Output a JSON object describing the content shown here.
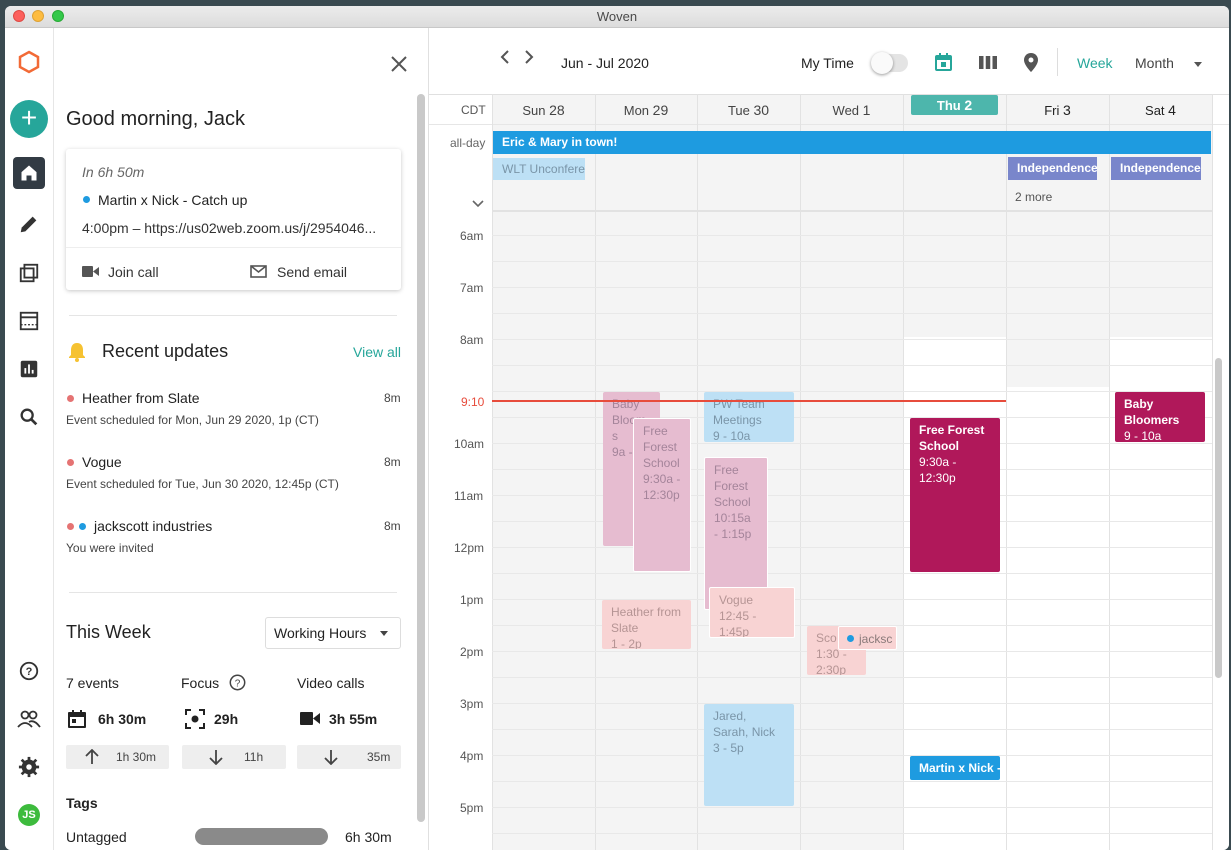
{
  "app": {
    "title": "Woven"
  },
  "nav": {
    "items": [
      {
        "name": "add"
      },
      {
        "name": "home"
      },
      {
        "name": "edit"
      },
      {
        "name": "scheduling"
      },
      {
        "name": "calendar"
      },
      {
        "name": "stats"
      },
      {
        "name": "search"
      },
      {
        "name": "help"
      },
      {
        "name": "people"
      },
      {
        "name": "settings"
      }
    ],
    "avatar": "JS"
  },
  "panel": {
    "greeting": "Good morning, Jack",
    "next": {
      "countdown": "In 6h 50m",
      "title": "Martin x Nick - Catch up",
      "detail": "4:00pm – https://us02web.zoom.us/j/2954046...",
      "join": "Join call",
      "email": "Send email"
    },
    "updates": {
      "title": "Recent updates",
      "view_all": "View all",
      "items": [
        {
          "title": "Heather from Slate",
          "time": "8m",
          "desc": "Event scheduled for Mon, Jun 29 2020, 1p (CT)"
        },
        {
          "title": "Vogue",
          "time": "8m",
          "desc": "Event scheduled for Tue, Jun 30 2020, 12:45p (CT)"
        },
        {
          "title": "jackscott industries",
          "time": "8m",
          "desc": "You were invited"
        }
      ]
    },
    "week": {
      "title": "This Week",
      "filter": "Working Hours",
      "stats": [
        {
          "label": "7 events",
          "value": "6h 30m",
          "delta": "1h 30m",
          "dir": "up"
        },
        {
          "label": "Focus",
          "value": "29h",
          "delta": "11h",
          "dir": "down"
        },
        {
          "label": "Video calls",
          "value": "3h 55m",
          "delta": "35m",
          "dir": "down"
        }
      ]
    },
    "tags": {
      "title": "Tags",
      "rows": [
        {
          "label": "Untagged",
          "value": "6h 30m"
        }
      ]
    }
  },
  "calendar": {
    "range": "Jun - Jul 2020",
    "my_time": "My Time",
    "view_week": "Week",
    "view_month": "Month",
    "tz": "CDT",
    "all_day": "all-day",
    "days": [
      {
        "name": "Sun",
        "num": "28"
      },
      {
        "name": "Mon",
        "num": "29"
      },
      {
        "name": "Tue",
        "num": "30"
      },
      {
        "name": "Wed",
        "num": "1"
      },
      {
        "name": "Thu",
        "num": "2",
        "today": true
      },
      {
        "name": "Fri",
        "num": "3"
      },
      {
        "name": "Sat",
        "num": "4"
      }
    ],
    "allday_events": [
      {
        "title": "Eric & Mary in town!"
      },
      {
        "title": "WLT Unconfere"
      },
      {
        "title": "Independence"
      },
      {
        "title": "Independence"
      }
    ],
    "more": "2 more",
    "hours": [
      "6am",
      "7am",
      "8am",
      "9:10",
      "10am",
      "11am",
      "12pm",
      "1pm",
      "2pm",
      "3pm",
      "4pm",
      "5pm"
    ],
    "events": [
      {
        "title": "Baby Bloom s",
        "time": "9a -"
      },
      {
        "title": "Free Forest School",
        "time": "9:30a - 12:30p"
      },
      {
        "title": "Heather from Slate",
        "time": "1 - 2p"
      },
      {
        "title": "PW Team Meetings",
        "time": "9 - 10a"
      },
      {
        "title": "Free Forest School",
        "time": "10:15a - 1:15p"
      },
      {
        "title": "Vogue",
        "time": "12:45 - 1:45p"
      },
      {
        "title": "Jared, Sarah, Nick",
        "time": "3 - 5p"
      },
      {
        "title": "Sco",
        "time": "1:30 - 2:30p"
      },
      {
        "title": "jacksc",
        "time": ""
      },
      {
        "title": "Free Forest School",
        "time": "9:30a - 12:30p"
      },
      {
        "title": "Martin x Nick -",
        "time": ""
      },
      {
        "title": "Baby Bloomers",
        "time": "9 - 10a"
      }
    ]
  },
  "colors": {
    "accent": "#26a69a",
    "today": "#4db6ac",
    "now_line": "#e74c3c",
    "blue_event": "#1e9be0",
    "magenta_event": "#b0185a",
    "purple_event": "#7986cb"
  }
}
